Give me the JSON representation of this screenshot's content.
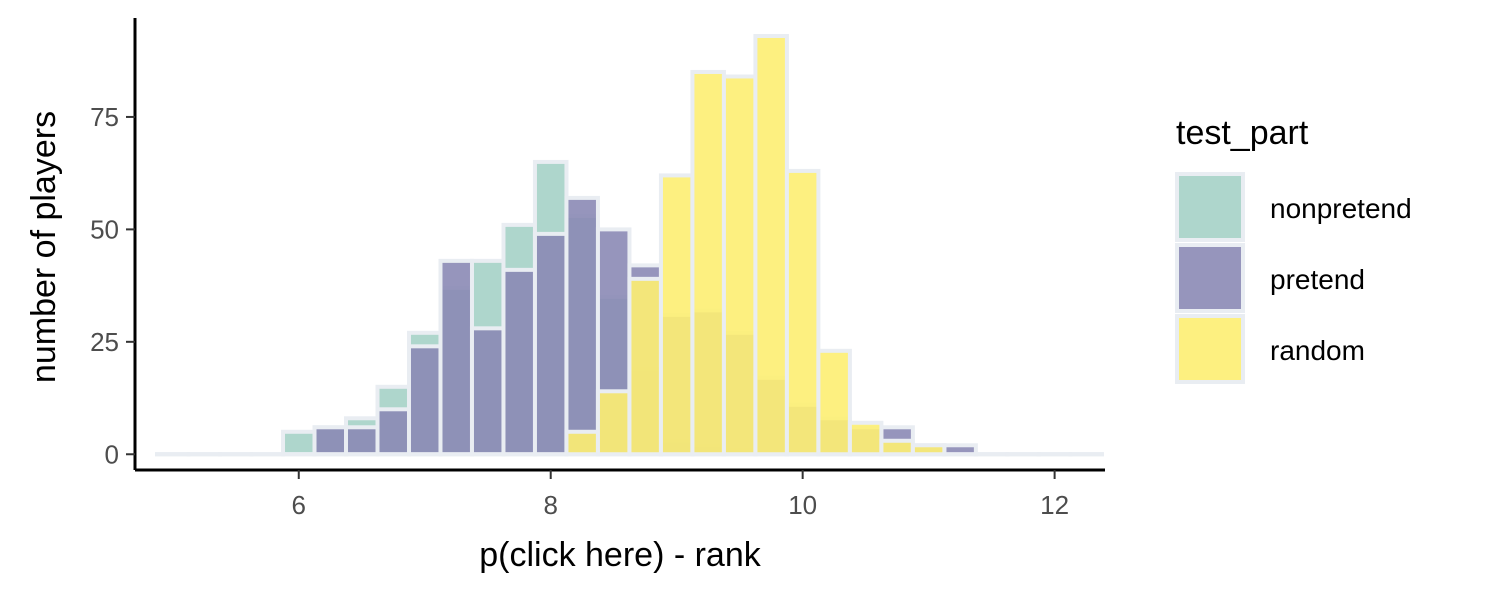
{
  "chart_data": {
    "type": "bar",
    "subtype": "overlapping-histogram",
    "xlabel": "p(click here) - rank",
    "ylabel": "number of players",
    "xlim": [
      4.7,
      12.4
    ],
    "ylim": [
      -3.5,
      97
    ],
    "xticks": [
      6,
      8,
      10,
      12
    ],
    "xtick_labels": [
      "6",
      "8",
      "10",
      "12"
    ],
    "yticks": [
      0,
      25,
      50,
      75
    ],
    "ytick_labels": [
      "0",
      "25",
      "50",
      "75"
    ],
    "grid": false,
    "bin_width": 0.25,
    "bin_start": 4.875,
    "legend": {
      "title": "test_part",
      "position": "right"
    },
    "series": [
      {
        "name": "nonpretend",
        "color": "#a5d2c7",
        "values": [
          0,
          0,
          0,
          0,
          5,
          6,
          8,
          15,
          27,
          37,
          43,
          51,
          65,
          53,
          35,
          19,
          3,
          2,
          1,
          0,
          0,
          0,
          0,
          0,
          0,
          0,
          0,
          0,
          0,
          0
        ]
      },
      {
        "name": "pretend",
        "color": "#8b8ab5",
        "values": [
          0,
          0,
          0,
          0,
          0,
          6,
          6,
          10,
          24,
          43,
          28,
          41,
          49,
          57,
          50,
          42,
          31,
          32,
          27,
          17,
          11,
          8,
          6,
          6,
          2,
          2,
          0,
          0,
          0,
          0
        ]
      },
      {
        "name": "random",
        "color": "#fdee72",
        "values": [
          0,
          0,
          0,
          0,
          0,
          0,
          0,
          0,
          0,
          0,
          0,
          0,
          0,
          5,
          14,
          39,
          62,
          85,
          84,
          93,
          63,
          23,
          7,
          3,
          2,
          0,
          0,
          0,
          0,
          0
        ]
      }
    ]
  }
}
